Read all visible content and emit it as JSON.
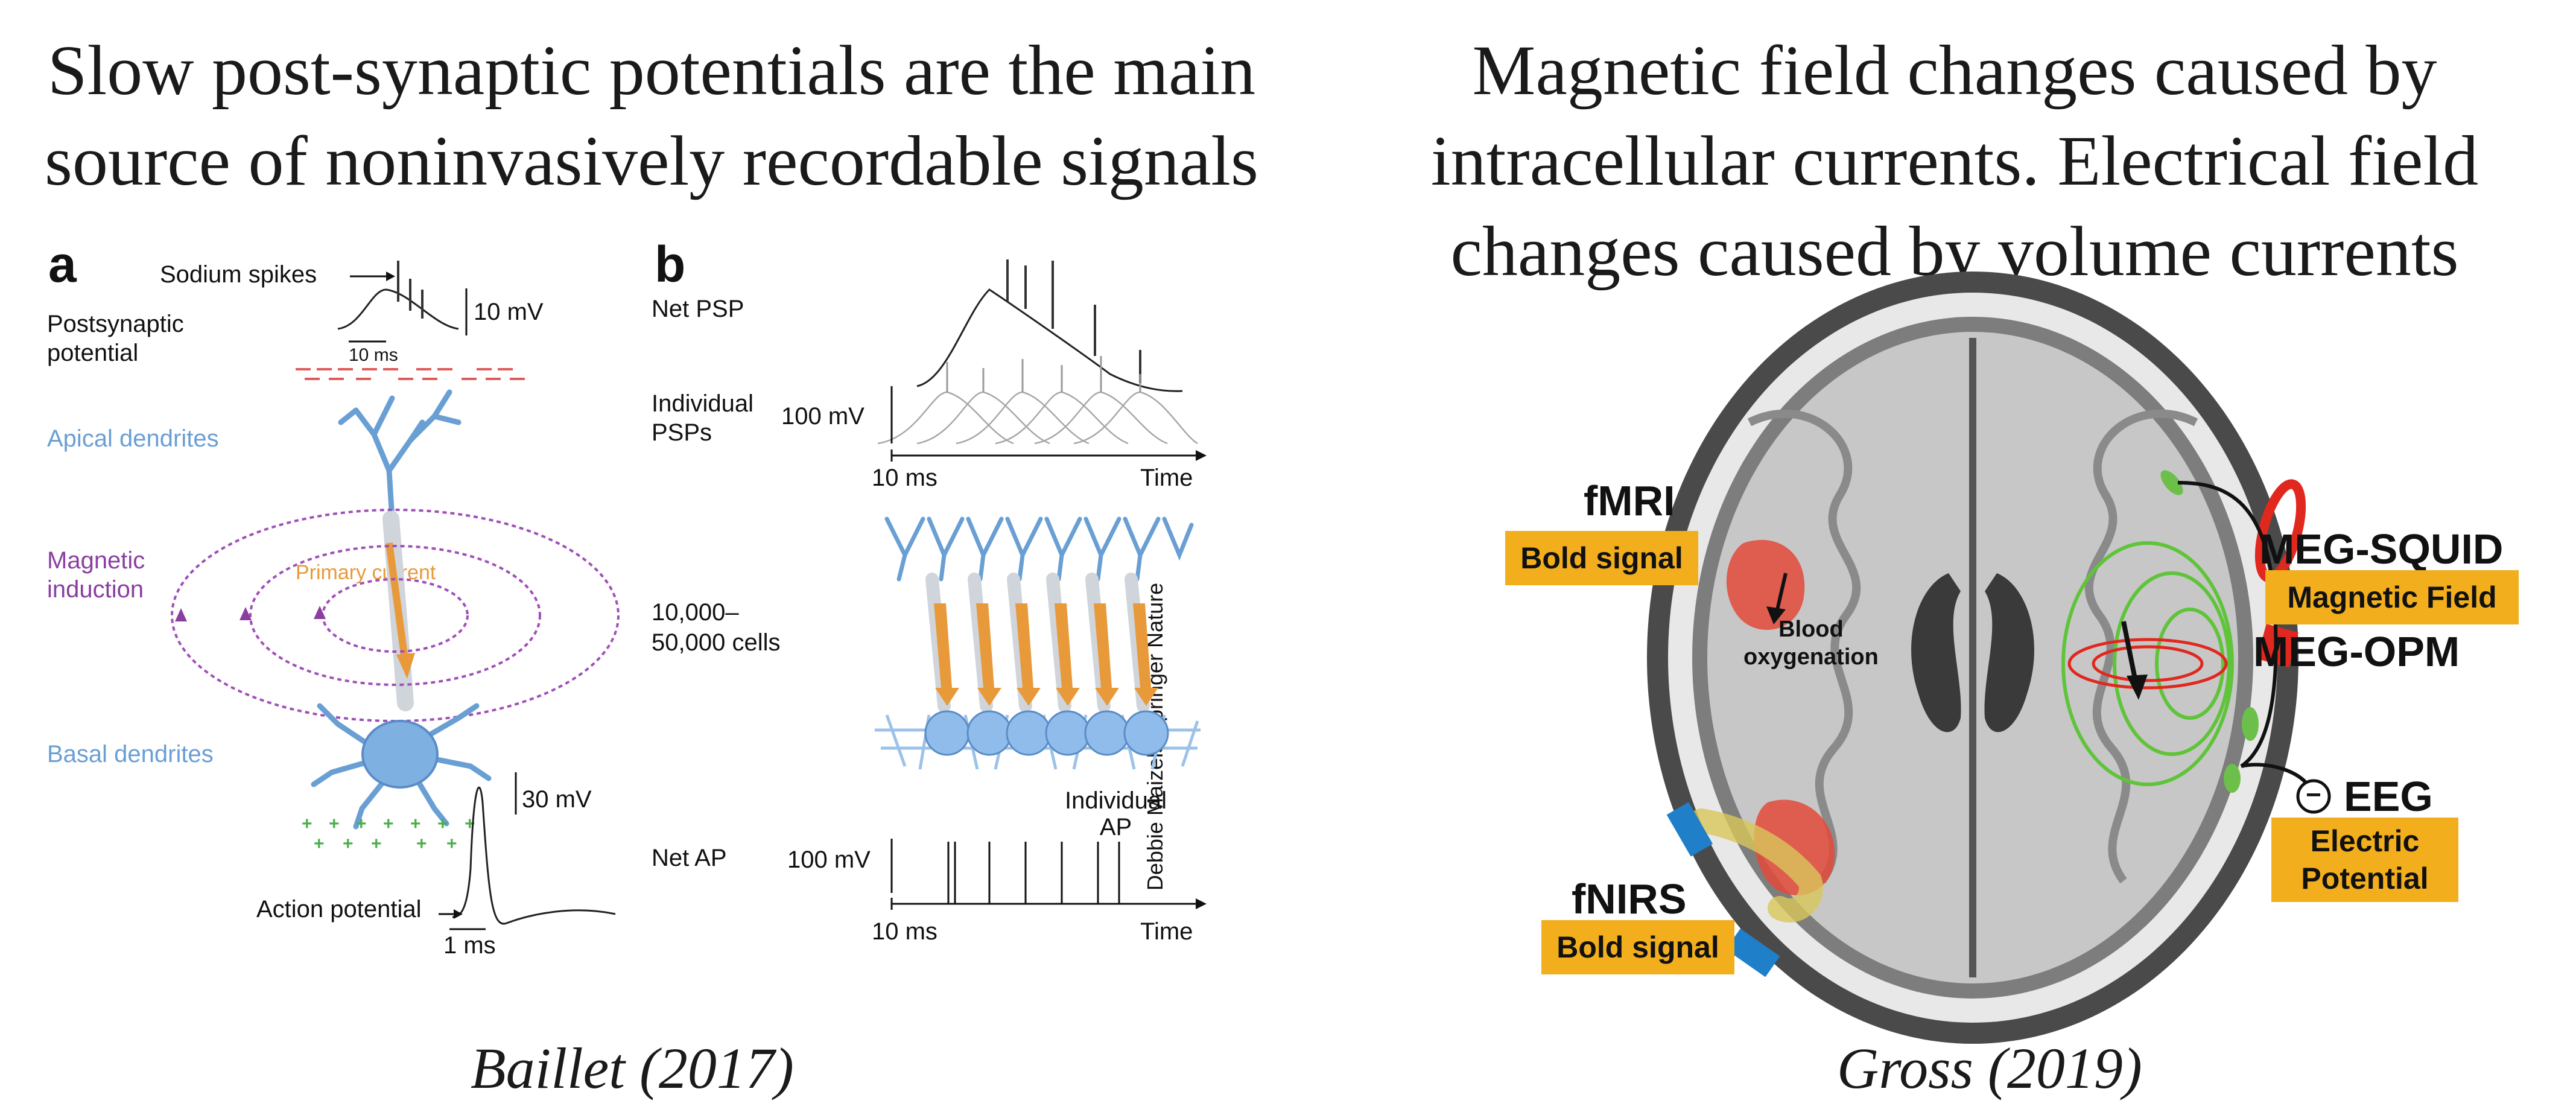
{
  "left": {
    "heading_line1": "Slow post-synaptic potentials are the main",
    "heading_line2": "source of noninvasively recordable signals",
    "citation": "Baillet (2017)",
    "panel_a": {
      "letter": "a",
      "sodium_spikes": "Sodium spikes",
      "psp_line1": "Postsynaptic",
      "psp_line2": "potential",
      "scale_10mv": "10 mV",
      "scale_10ms": "10 ms",
      "apical": "Apical dendrites",
      "magnetic_line1": "Magnetic",
      "magnetic_line2": "induction",
      "primary_current": "Primary current",
      "basal": "Basal dendrites",
      "scale_30mv": "30 mV",
      "action_potential": "Action potential",
      "scale_1ms": "1 ms"
    },
    "panel_b": {
      "letter": "b",
      "net_psp": "Net PSP",
      "individual_line1": "Individual",
      "individual_line2": "PSPs",
      "scale_100mv_top": "100 mV",
      "axis_10ms_top": "10 ms",
      "axis_time_top": "Time",
      "cells_line1": "10,000–",
      "cells_line2": "50,000 cells",
      "individual_ap_line1": "Individual",
      "individual_ap_line2": "AP",
      "net_ap": "Net AP",
      "scale_100mv_bottom": "100 mV",
      "axis_10ms_bottom": "10 ms",
      "axis_time_bottom": "Time",
      "credit": "Debbie Maizels/Springer Nature"
    }
  },
  "right": {
    "heading_line1": "Magnetic field changes caused by",
    "heading_line2": "intracellular currents. Electrical field",
    "heading_line3": "changes caused by volume currents",
    "citation": "Gross (2019)",
    "fmri": "fMRI",
    "fmri_badge": "Bold signal",
    "blood_line1": "Blood",
    "blood_line2": "oxygenation",
    "fnirs": "fNIRS",
    "fnirs_badge": "Bold signal",
    "meg_squid": "MEG-SQUID",
    "meg_squid_badge": "Magnetic Field",
    "meg_opm": "MEG-OPM",
    "eeg": "EEG",
    "eeg_symbol": "−",
    "eeg_badge_line1": "Electric",
    "eeg_badge_line2": "Potential"
  },
  "colors": {
    "badge": "#f2ae1c",
    "dendrite_blue": "#6a9fd4",
    "magnetic_purple": "#8a3ea0",
    "current_orange": "#e89a3a",
    "field_green": "#5fc43a",
    "meg_red": "#e0281e",
    "nirs_blue": "#1f7fc9"
  }
}
